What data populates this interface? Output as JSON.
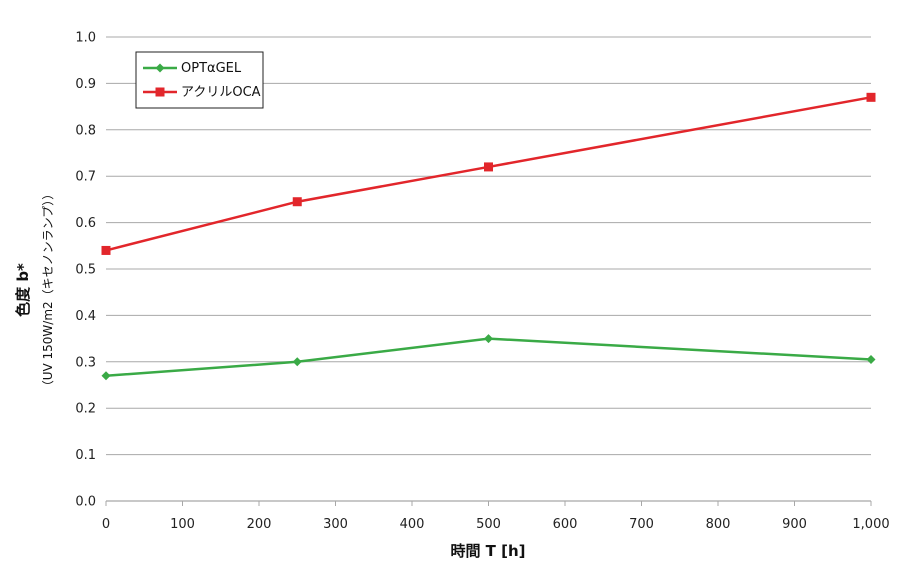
{
  "chart_data": {
    "type": "line",
    "xlabel": "時間 T [h]",
    "ylabel": "色度 b*",
    "ylabel_sub": "（UV 150W/m2（キセノンランプ））",
    "xlim": [
      0,
      1000
    ],
    "ylim": [
      0,
      1
    ],
    "x_ticks": [
      0,
      100,
      200,
      300,
      400,
      500,
      600,
      700,
      800,
      900,
      1000
    ],
    "x_tick_labels": [
      "0",
      "100",
      "200",
      "300",
      "400",
      "500",
      "600",
      "700",
      "800",
      "900",
      "1,000"
    ],
    "y_ticks": [
      0,
      0.1,
      0.2,
      0.3,
      0.4,
      0.5,
      0.6,
      0.7,
      0.8,
      0.9,
      1.0
    ],
    "y_tick_labels": [
      "0.0",
      "0.1",
      "0.2",
      "0.3",
      "0.4",
      "0.5",
      "0.6",
      "0.7",
      "0.8",
      "0.9",
      "1.0"
    ],
    "grid": true,
    "legend_position": "top-left",
    "series": [
      {
        "name": "OPTαGEL",
        "color": "#3aaa46",
        "marker": "diamond",
        "x": [
          0,
          250,
          500,
          1000
        ],
        "y": [
          0.27,
          0.3,
          0.35,
          0.305
        ]
      },
      {
        "name": "アクリルOCA",
        "color": "#e2262b",
        "marker": "square",
        "x": [
          0,
          250,
          500,
          1000
        ],
        "y": [
          0.54,
          0.645,
          0.72,
          0.87
        ]
      }
    ]
  }
}
